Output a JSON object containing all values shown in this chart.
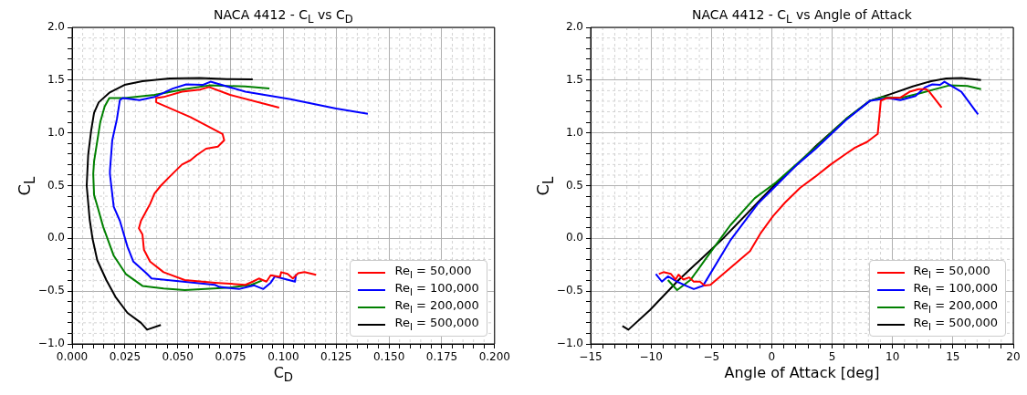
{
  "chart_data": [
    {
      "type": "line",
      "title": "NACA 4412 - C$_{L}$ vs C$_{D}$",
      "xlabel": "C$_{D}$",
      "ylabel": "C$_{L}$",
      "grid": true,
      "legend": "bottom right",
      "xlim": [
        0,
        0.2
      ],
      "xticks": [
        {
          "value": 0,
          "label": "0.000"
        },
        {
          "value": 0.005,
          "label": null
        },
        {
          "value": 0.01,
          "label": null
        },
        {
          "value": 0.015,
          "label": null
        },
        {
          "value": 0.02,
          "label": null
        },
        {
          "value": 0.025,
          "label": "0.025"
        },
        {
          "value": 0.03,
          "label": null
        },
        {
          "value": 0.035,
          "label": null
        },
        {
          "value": 0.04,
          "label": null
        },
        {
          "value": 0.045,
          "label": null
        },
        {
          "value": 0.05,
          "label": "0.050"
        },
        {
          "value": 0.055,
          "label": null
        },
        {
          "value": 0.06,
          "label": null
        },
        {
          "value": 0.065,
          "label": null
        },
        {
          "value": 0.07,
          "label": null
        },
        {
          "value": 0.075,
          "label": "0.075"
        },
        {
          "value": 0.08,
          "label": null
        },
        {
          "value": 0.085,
          "label": null
        },
        {
          "value": 0.09,
          "label": null
        },
        {
          "value": 0.095,
          "label": null
        },
        {
          "value": 0.1,
          "label": "0.100"
        },
        {
          "value": 0.105,
          "label": null
        },
        {
          "value": 0.11,
          "label": null
        },
        {
          "value": 0.115,
          "label": null
        },
        {
          "value": 0.12,
          "label": null
        },
        {
          "value": 0.125,
          "label": "0.125"
        },
        {
          "value": 0.13,
          "label": null
        },
        {
          "value": 0.135,
          "label": null
        },
        {
          "value": 0.14,
          "label": null
        },
        {
          "value": 0.145,
          "label": null
        },
        {
          "value": 0.15,
          "label": "0.150"
        },
        {
          "value": 0.155,
          "label": null
        },
        {
          "value": 0.16,
          "label": null
        },
        {
          "value": 0.165,
          "label": null
        },
        {
          "value": 0.17,
          "label": null
        },
        {
          "value": 0.175,
          "label": "0.175"
        },
        {
          "value": 0.18,
          "label": null
        },
        {
          "value": 0.185,
          "label": null
        },
        {
          "value": 0.19,
          "label": null
        },
        {
          "value": 0.195,
          "label": null
        },
        {
          "value": 0.2,
          "label": "0.200"
        }
      ],
      "ylim": [
        -1,
        2
      ],
      "yticks": [
        {
          "value": -1,
          "label": "−1.0"
        },
        {
          "value": -0.9,
          "label": null
        },
        {
          "value": -0.8,
          "label": null
        },
        {
          "value": -0.7,
          "label": null
        },
        {
          "value": -0.6,
          "label": null
        },
        {
          "value": -0.5,
          "label": "−0.5"
        },
        {
          "value": -0.4,
          "label": null
        },
        {
          "value": -0.3,
          "label": null
        },
        {
          "value": -0.2,
          "label": null
        },
        {
          "value": -0.1,
          "label": null
        },
        {
          "value": 0,
          "label": "0.0"
        },
        {
          "value": 0.1,
          "label": null
        },
        {
          "value": 0.2,
          "label": null
        },
        {
          "value": 0.3,
          "label": null
        },
        {
          "value": 0.4,
          "label": null
        },
        {
          "value": 0.5,
          "label": "0.5"
        },
        {
          "value": 0.6,
          "label": null
        },
        {
          "value": 0.7,
          "label": null
        },
        {
          "value": 0.8,
          "label": null
        },
        {
          "value": 0.9,
          "label": null
        },
        {
          "value": 1,
          "label": "1.0"
        },
        {
          "value": 1.1,
          "label": null
        },
        {
          "value": 1.2,
          "label": null
        },
        {
          "value": 1.3,
          "label": null
        },
        {
          "value": 1.4,
          "label": null
        },
        {
          "value": 1.5,
          "label": "1.5"
        },
        {
          "value": 1.6,
          "label": null
        },
        {
          "value": 1.7,
          "label": null
        },
        {
          "value": 1.8,
          "label": null
        },
        {
          "value": 1.9,
          "label": null
        },
        {
          "value": 2,
          "label": "2.0"
        }
      ],
      "series": [
        {
          "name": "Re$_{l}$ = 50,000",
          "color": "#ff0000",
          "x": [
            0.1155,
            0.11,
            0.107,
            0.1045,
            0.102,
            0.099,
            0.0984,
            0.094,
            0.092,
            0.0884,
            0.0855,
            0.082,
            0.0677,
            0.0533,
            0.0433,
            0.0369,
            0.034,
            0.0333,
            0.0316,
            0.0326,
            0.0369,
            0.039,
            0.042,
            0.0462,
            0.052,
            0.056,
            0.059,
            0.0634,
            0.069,
            0.072,
            0.0712,
            0.056,
            0.0398,
            0.0398,
            0.0433,
            0.052,
            0.0605,
            0.0648,
            0.0748,
            0.098
          ],
          "values": [
            -0.345,
            -0.32,
            -0.33,
            -0.38,
            -0.337,
            -0.32,
            -0.365,
            -0.35,
            -0.41,
            -0.38,
            -0.41,
            -0.44,
            -0.42,
            -0.395,
            -0.32,
            -0.22,
            -0.107,
            0.037,
            0.095,
            0.167,
            0.326,
            0.426,
            0.5,
            0.585,
            0.7,
            0.74,
            0.79,
            0.85,
            0.87,
            0.93,
            0.99,
            1.15,
            1.29,
            1.33,
            1.34,
            1.39,
            1.41,
            1.435,
            1.36,
            1.24
          ]
        },
        {
          "name": "Re$_{l}$ = 100,000",
          "color": "#0000ff",
          "x": [
            0.106,
            0.1055,
            0.096,
            0.094,
            0.0905,
            0.0862,
            0.079,
            0.0698,
            0.0676,
            0.0376,
            0.0355,
            0.029,
            0.0262,
            0.0226,
            0.0197,
            0.0179,
            0.0179,
            0.019,
            0.0212,
            0.0226,
            0.024,
            0.0319,
            0.039,
            0.0476,
            0.054,
            0.062,
            0.0655,
            0.082,
            0.1034,
            0.125,
            0.14
          ],
          "values": [
            -0.34,
            -0.41,
            -0.36,
            -0.42,
            -0.48,
            -0.445,
            -0.48,
            -0.46,
            -0.44,
            -0.38,
            -0.337,
            -0.22,
            -0.078,
            0.167,
            0.3,
            0.61,
            0.64,
            0.93,
            1.13,
            1.31,
            1.33,
            1.31,
            1.34,
            1.42,
            1.46,
            1.455,
            1.485,
            1.39,
            1.32,
            1.23,
            1.18
          ]
        },
        {
          "name": "Re$_{l}$ = 200,000",
          "color": "#008000",
          "x": [
            0.0898,
            0.0848,
            0.0747,
            0.0533,
            0.0433,
            0.0333,
            0.0254,
            0.0197,
            0.0147,
            0.0119,
            0.0104,
            0.01,
            0.0104,
            0.0133,
            0.0154,
            0.0176,
            0.0248,
            0.039,
            0.0533,
            0.0648,
            0.082,
            0.0934
          ],
          "values": [
            -0.4,
            -0.44,
            -0.467,
            -0.49,
            -0.475,
            -0.45,
            -0.337,
            -0.164,
            0.11,
            0.31,
            0.41,
            0.61,
            0.73,
            1.1,
            1.25,
            1.33,
            1.33,
            1.36,
            1.415,
            1.45,
            1.44,
            1.42
          ]
        },
        {
          "name": "Re$_{l}$ = 500,000",
          "color": "#000000",
          "x": [
            0.042,
            0.0355,
            0.0326,
            0.0262,
            0.0205,
            0.0162,
            0.0119,
            0.0097,
            0.0083,
            0.0069,
            0.0076,
            0.009,
            0.0104,
            0.0126,
            0.0176,
            0.0248,
            0.0333,
            0.0462,
            0.0605,
            0.0734,
            0.0855
          ],
          "values": [
            -0.82,
            -0.865,
            -0.8,
            -0.706,
            -0.553,
            -0.395,
            -0.207,
            -0.006,
            0.18,
            0.5,
            0.79,
            1.02,
            1.19,
            1.29,
            1.38,
            1.455,
            1.49,
            1.515,
            1.52,
            1.51,
            1.507
          ]
        }
      ]
    },
    {
      "type": "line",
      "title": "NACA 4412 - C$_{L}$ vs Angle of Attack",
      "xlabel": "Angle of Attack [deg]",
      "ylabel": "C$_{L}$",
      "grid": true,
      "legend": "bottom right",
      "xlim": [
        -15,
        20
      ],
      "xticks": [
        {
          "value": -15,
          "label": "−15"
        },
        {
          "value": -14,
          "label": null
        },
        {
          "value": -13,
          "label": null
        },
        {
          "value": -12,
          "label": null
        },
        {
          "value": -11,
          "label": null
        },
        {
          "value": -10,
          "label": "−10"
        },
        {
          "value": -9,
          "label": null
        },
        {
          "value": -8,
          "label": null
        },
        {
          "value": -7,
          "label": null
        },
        {
          "value": -6,
          "label": null
        },
        {
          "value": -5,
          "label": "−5"
        },
        {
          "value": -4,
          "label": null
        },
        {
          "value": -3,
          "label": null
        },
        {
          "value": -2,
          "label": null
        },
        {
          "value": -1,
          "label": null
        },
        0,
        {
          "value": 1,
          "label": null
        },
        {
          "value": 2,
          "label": null
        },
        {
          "value": 3,
          "label": null
        },
        {
          "value": 4,
          "label": null
        },
        5,
        {
          "value": 6,
          "label": null
        },
        {
          "value": 7,
          "label": null
        },
        {
          "value": 8,
          "label": null
        },
        {
          "value": 9,
          "label": null
        },
        10,
        {
          "value": 11,
          "label": null
        },
        {
          "value": 12,
          "label": null
        },
        {
          "value": 13,
          "label": null
        },
        {
          "value": 14,
          "label": null
        },
        15,
        {
          "value": 16,
          "label": null
        },
        {
          "value": 17,
          "label": null
        },
        {
          "value": 18,
          "label": null
        },
        {
          "value": 19,
          "label": null
        },
        20
      ],
      "ylim": [
        -1,
        2
      ],
      "yticks": [
        {
          "value": -1,
          "label": "−1.0"
        },
        {
          "value": -0.9,
          "label": null
        },
        {
          "value": -0.8,
          "label": null
        },
        {
          "value": -0.7,
          "label": null
        },
        {
          "value": -0.6,
          "label": null
        },
        {
          "value": -0.5,
          "label": "−0.5"
        },
        {
          "value": -0.4,
          "label": null
        },
        {
          "value": -0.3,
          "label": null
        },
        {
          "value": -0.2,
          "label": null
        },
        {
          "value": -0.1,
          "label": null
        },
        {
          "value": 0,
          "label": "0.0"
        },
        {
          "value": 0.1,
          "label": null
        },
        {
          "value": 0.2,
          "label": null
        },
        {
          "value": 0.3,
          "label": null
        },
        {
          "value": 0.4,
          "label": null
        },
        {
          "value": 0.5,
          "label": "0.5"
        },
        {
          "value": 0.6,
          "label": null
        },
        {
          "value": 0.7,
          "label": null
        },
        {
          "value": 0.8,
          "label": null
        },
        {
          "value": 0.9,
          "label": null
        },
        {
          "value": 1,
          "label": "1.0"
        },
        {
          "value": 1.1,
          "label": null
        },
        {
          "value": 1.2,
          "label": null
        },
        {
          "value": 1.3,
          "label": null
        },
        {
          "value": 1.4,
          "label": null
        },
        {
          "value": 1.5,
          "label": "1.5"
        },
        {
          "value": 1.6,
          "label": null
        },
        {
          "value": 1.7,
          "label": null
        },
        {
          "value": 1.8,
          "label": null
        },
        {
          "value": 1.9,
          "label": null
        },
        {
          "value": 2,
          "label": "2.0"
        }
      ],
      "series": [
        {
          "name": "Re$_{l}$ = 50,000",
          "color": "#ff0000",
          "x": [
            -9.35,
            -8.97,
            -8.35,
            -7.97,
            -7.72,
            -7.34,
            -6.84,
            -6.46,
            -5.95,
            -5.57,
            -5.08,
            -3.44,
            -1.8,
            -0.92,
            0.09,
            1.1,
            2.36,
            3.6,
            4.87,
            6.13,
            6.89,
            7.9,
            8.77,
            9.03,
            9.53,
            10.66,
            11.42,
            12.17,
            12.8,
            13.05,
            14.06
          ],
          "values": [
            -0.337,
            -0.32,
            -0.337,
            -0.39,
            -0.343,
            -0.39,
            -0.37,
            -0.41,
            -0.41,
            -0.447,
            -0.44,
            -0.28,
            -0.12,
            0.05,
            0.21,
            0.34,
            0.48,
            0.585,
            0.7,
            0.8,
            0.86,
            0.915,
            0.99,
            1.305,
            1.33,
            1.335,
            1.39,
            1.415,
            1.415,
            1.39,
            1.24
          ]
        },
        {
          "name": "Re$_{l}$ = 100,000",
          "color": "#0000ff",
          "x": [
            -9.6,
            -9.1,
            -8.6,
            -7.84,
            -7.08,
            -6.46,
            -5.7,
            -3.44,
            -1.17,
            0.09,
            2.1,
            3.6,
            6.13,
            8.14,
            9.65,
            10.66,
            11.9,
            12.67,
            13.3,
            13.94,
            14.3,
            15.7,
            17.08
          ],
          "values": [
            -0.337,
            -0.41,
            -0.36,
            -0.41,
            -0.45,
            -0.48,
            -0.45,
            -0.02,
            0.326,
            0.47,
            0.7,
            0.845,
            1.12,
            1.305,
            1.33,
            1.31,
            1.35,
            1.43,
            1.46,
            1.455,
            1.485,
            1.39,
            1.175
          ]
        },
        {
          "name": "Re$_{l}$ = 200,000",
          "color": "#008000",
          "x": [
            -8.6,
            -7.84,
            -6.7,
            -5.45,
            -3.44,
            -1.42,
            0.34,
            3.6,
            6.13,
            8.14,
            9.15,
            10.66,
            12.42,
            14.7,
            16.2,
            17.33
          ],
          "values": [
            -0.395,
            -0.49,
            -0.39,
            -0.19,
            0.124,
            0.38,
            0.53,
            0.86,
            1.13,
            1.305,
            1.34,
            1.33,
            1.38,
            1.45,
            1.445,
            1.415
          ]
        },
        {
          "name": "Re$_{l}$ = 500,000",
          "color": "#000000",
          "x": [
            -12.37,
            -11.87,
            -10.1,
            -7.72,
            -3.94,
            0.09,
            2.1,
            3.6,
            6.13,
            8.14,
            9.9,
            11.67,
            13.2,
            14.44,
            15.7,
            17.33
          ],
          "values": [
            -0.83,
            -0.865,
            -0.68,
            -0.395,
            0.01,
            0.49,
            0.7,
            0.87,
            1.13,
            1.305,
            1.37,
            1.44,
            1.49,
            1.515,
            1.52,
            1.5
          ]
        }
      ]
    }
  ]
}
